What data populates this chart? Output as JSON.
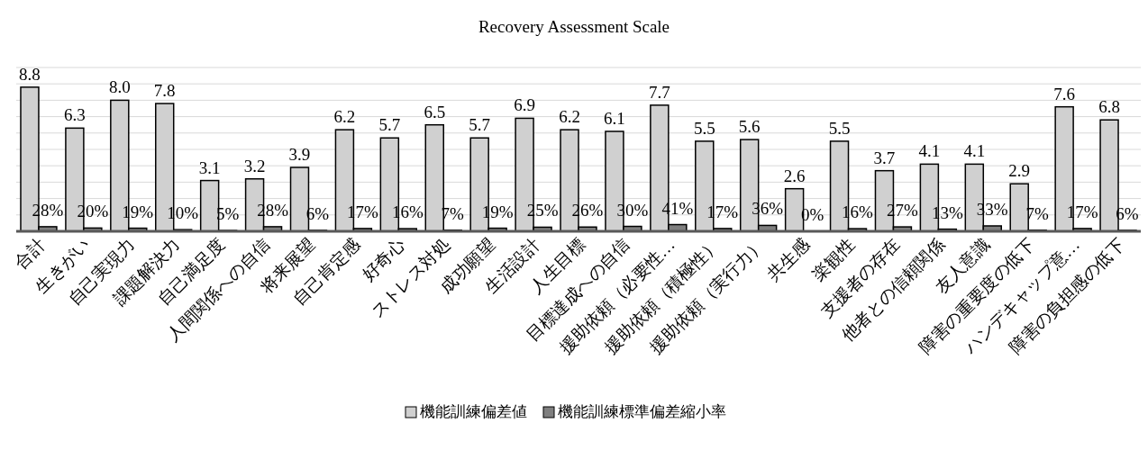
{
  "chart_data": {
    "type": "bar",
    "title": "Recovery Assessment Scale",
    "categories": [
      "合計",
      "生きがい",
      "自己実現力",
      "課題解決力",
      "自己満足度",
      "人間関係への自信",
      "将来展望",
      "自己肯定感",
      "好奇心",
      "ストレス対処",
      "成功願望",
      "生活設計",
      "人生目標",
      "目標達成への自信",
      "援助依頼（必要性…",
      "援助依頼（積極性）",
      "援助依頼（実行力）",
      "共生感",
      "楽観性",
      "支援者の存在",
      "他者との信頼関係",
      "友人意識",
      "障害の重要度の低下",
      "ハンデキャップ意…",
      "障害の負担感の低下"
    ],
    "series": [
      {
        "name": "機能訓練偏差値",
        "color": "#d0d0d0",
        "values": [
          8.8,
          6.3,
          8.0,
          7.8,
          3.1,
          3.2,
          3.9,
          6.2,
          5.7,
          6.5,
          5.7,
          6.9,
          6.2,
          6.1,
          7.7,
          5.5,
          5.6,
          2.6,
          5.5,
          3.7,
          4.1,
          4.1,
          2.9,
          7.6,
          6.8
        ],
        "value_labels": [
          "8.8",
          "6.3",
          "8.0",
          "7.8",
          "3.1",
          "3.2",
          "3.9",
          "6.2",
          "5.7",
          "6.5",
          "5.7",
          "6.9",
          "6.2",
          "6.1",
          "7.7",
          "5.5",
          "5.6",
          "2.6",
          "5.5",
          "3.7",
          "4.1",
          "4.1",
          "2.9",
          "7.6",
          "6.8"
        ]
      },
      {
        "name": "機能訓練標準偏差縮小率",
        "color": "#7f7f7f",
        "values": [
          0.28,
          0.2,
          0.19,
          0.1,
          0.05,
          0.28,
          0.06,
          0.17,
          0.16,
          0.07,
          0.19,
          0.25,
          0.26,
          0.3,
          0.41,
          0.17,
          0.36,
          0,
          0.16,
          0.27,
          0.13,
          0.33,
          0.07,
          0.17,
          0.06
        ],
        "value_labels": [
          "28%",
          "20%",
          "19%",
          "10%",
          "5%",
          "28%",
          "6%",
          "17%",
          "16%",
          "7%",
          "19%",
          "25%",
          "26%",
          "30%",
          "41%",
          "17%",
          "36%",
          "0%",
          "16%",
          "27%",
          "13%",
          "33%",
          "7%",
          "17%",
          "6%"
        ]
      }
    ],
    "ylim": [
      0,
      10
    ],
    "yticks": [
      {
        "value": 0,
        "label": null
      },
      {
        "value": 1,
        "label": null
      },
      {
        "value": 2,
        "label": null
      },
      {
        "value": 3,
        "label": null
      },
      {
        "value": 4,
        "label": null
      },
      {
        "value": 5,
        "label": null
      },
      {
        "value": 6,
        "label": null
      },
      {
        "value": 7,
        "label": null
      },
      {
        "value": 8,
        "label": null
      },
      {
        "value": 9,
        "label": null
      },
      {
        "value": 10,
        "label": null
      }
    ],
    "tick_labels": "x",
    "grid": "y",
    "legend": "bottom"
  }
}
